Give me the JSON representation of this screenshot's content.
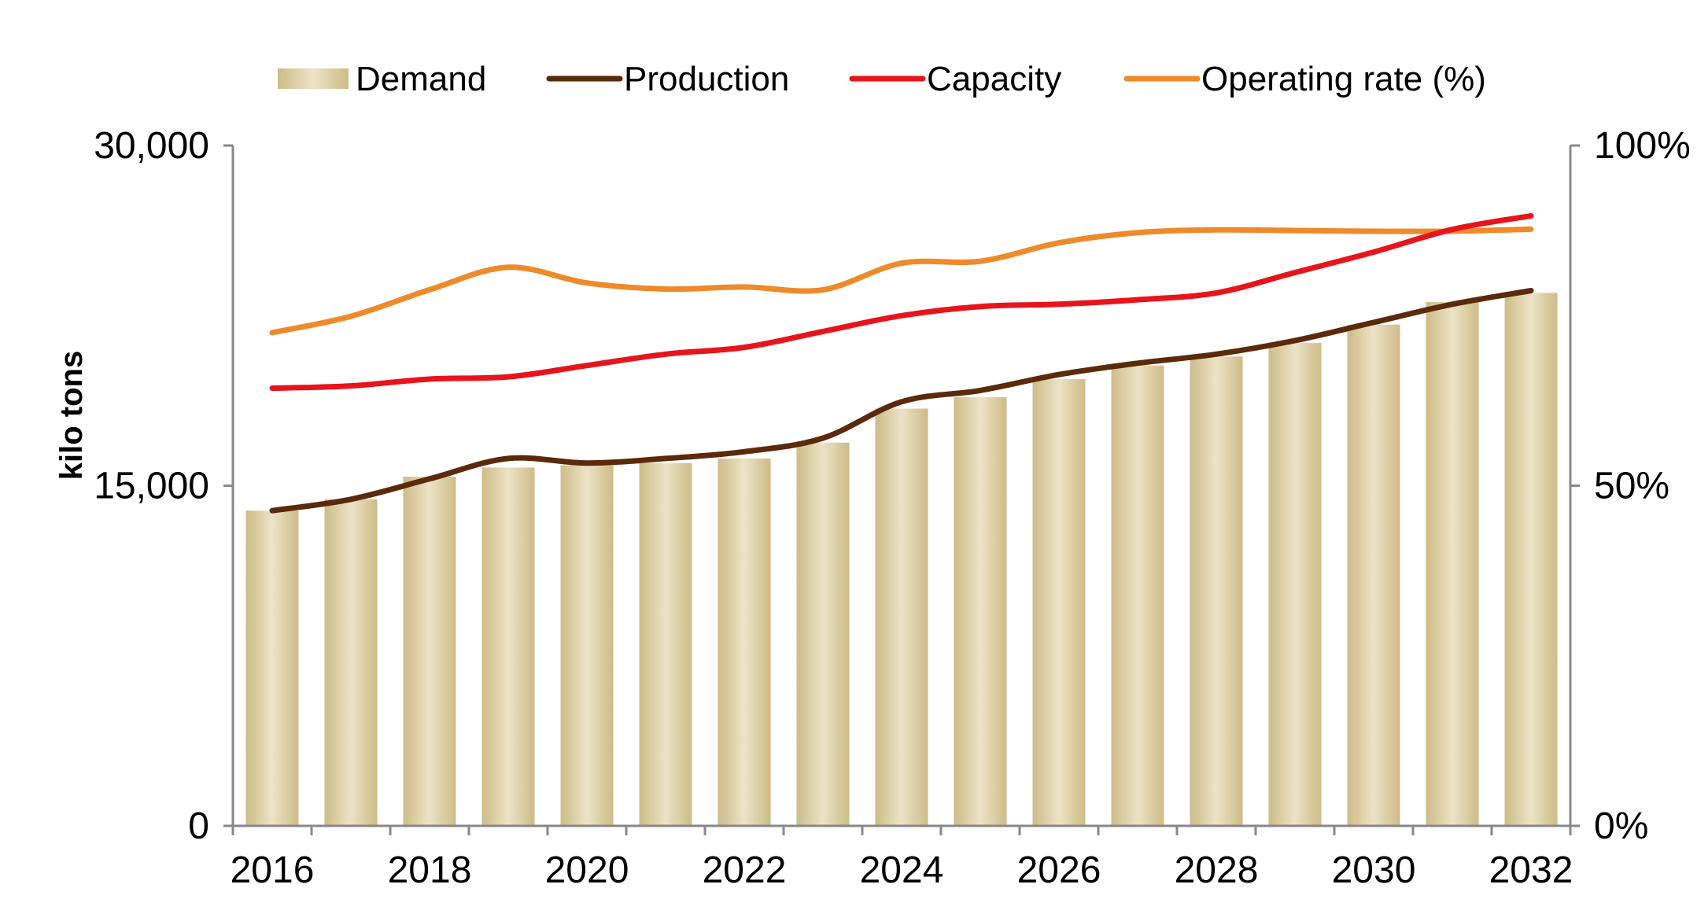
{
  "chart_data": {
    "type": "bar",
    "title": "",
    "xlabel": "",
    "ylabel": "kilo tons",
    "ylim": [
      0,
      30000
    ],
    "y2lim": [
      0,
      100
    ],
    "y_ticks": [
      "0",
      "15,000",
      "30,000"
    ],
    "y2_ticks": [
      "0%",
      "50%",
      "100%"
    ],
    "x_tick_labels": [
      "2016",
      "2018",
      "2020",
      "2022",
      "2024",
      "2026",
      "2028",
      "2030",
      "2032"
    ],
    "categories": [
      "2016",
      "2017",
      "2018",
      "2019",
      "2020",
      "2021",
      "2022",
      "2023",
      "2024",
      "2025",
      "2026",
      "2027",
      "2028",
      "2029",
      "2030",
      "2031",
      "2032"
    ],
    "series": [
      {
        "name": "Demand",
        "kind": "bar",
        "axis": "left",
        "color": "#D8CA9E",
        "values": [
          13900,
          14400,
          15400,
          15800,
          15900,
          16000,
          16200,
          16900,
          18400,
          18900,
          19700,
          20300,
          20700,
          21300,
          22100,
          23100,
          23500
        ]
      },
      {
        "name": "Production",
        "kind": "line",
        "axis": "left",
        "color": "#5A2A0A",
        "values": [
          13900,
          14400,
          15300,
          16200,
          16000,
          16200,
          16500,
          17100,
          18700,
          19200,
          19900,
          20400,
          20800,
          21400,
          22200,
          23000,
          23600
        ]
      },
      {
        "name": "Capacity",
        "kind": "line",
        "axis": "left",
        "color": "#E8141B",
        "values": [
          19300,
          19400,
          19700,
          19800,
          20300,
          20800,
          21100,
          21800,
          22500,
          22900,
          23000,
          23200,
          23500,
          24400,
          25300,
          26300,
          26900
        ]
      },
      {
        "name": "Operating rate (%)",
        "kind": "line",
        "axis": "right",
        "color": "#EE8A2A",
        "values": [
          72.5,
          74.9,
          78.8,
          82.1,
          79.8,
          78.9,
          79.2,
          78.8,
          82.7,
          83.0,
          85.7,
          87.2,
          87.6,
          87.5,
          87.4,
          87.4,
          87.7
        ]
      }
    ],
    "legend": [
      "Demand",
      "Production",
      "Capacity",
      "Operating rate (%)"
    ],
    "legend_position": "top",
    "grid": false
  }
}
